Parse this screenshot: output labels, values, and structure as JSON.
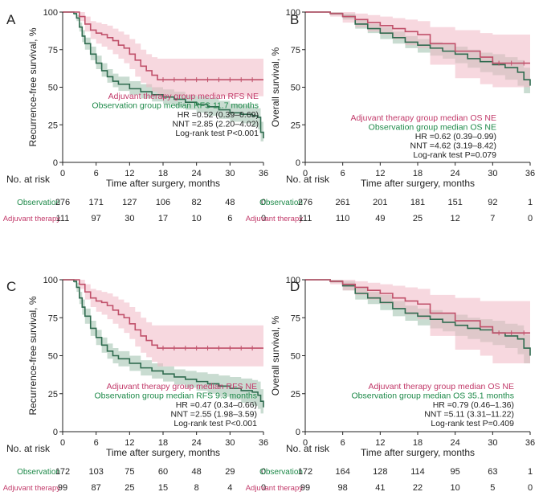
{
  "colors": {
    "observation": "#2f6b4f",
    "adjuvant": "#c0506a",
    "observation_band": "#9dbfab",
    "adjuvant_band": "#f0b8c4",
    "annot_obs": "#1f8a4a",
    "annot_adj": "#c23a6a",
    "text": "#222222"
  },
  "common": {
    "xlabel": "Time after surgery, months",
    "risk_title": "No. at risk",
    "risk_labels": [
      "Observation",
      "Adjuvant therapy"
    ]
  },
  "chart_data": [
    {
      "type": "line",
      "panel_label": "A",
      "title": "",
      "ylabel": "Recurrence-free survival, %",
      "xlabel": "Time after surgery, months",
      "xlim": [
        0,
        36
      ],
      "ylim": [
        0,
        100
      ],
      "xticks": [
        0,
        6,
        12,
        18,
        24,
        30,
        36
      ],
      "yticks": [
        0,
        25,
        50,
        75,
        100
      ],
      "series": [
        {
          "name": "Observation",
          "x": [
            0,
            1,
            2,
            2.5,
            3,
            3.5,
            4,
            5,
            6,
            7,
            8,
            9,
            10,
            12,
            14,
            16,
            18,
            20,
            22,
            24,
            26,
            28,
            30,
            32,
            34,
            35,
            35.5,
            36
          ],
          "y": [
            100,
            100,
            99,
            96,
            90,
            84,
            79,
            72,
            66,
            61,
            57,
            54,
            52,
            49,
            47,
            45,
            43.5,
            42,
            40,
            38.5,
            37,
            35,
            33,
            32,
            31,
            30,
            20,
            16
          ],
          "lower": [
            100,
            100,
            98,
            94,
            87,
            80,
            75,
            68,
            62,
            57,
            53,
            50,
            47.5,
            45,
            42.5,
            40.5,
            39,
            37,
            35,
            33,
            31,
            29,
            27,
            26,
            24,
            22,
            14,
            10
          ],
          "upper": [
            100,
            100,
            100,
            98,
            93,
            88,
            83,
            77,
            71,
            66,
            62,
            59,
            57,
            54,
            52,
            50,
            48.5,
            47,
            45,
            44,
            43,
            41,
            39,
            38,
            37,
            36,
            27,
            22
          ]
        },
        {
          "name": "Adjuvant therapy",
          "x": [
            0,
            2,
            3,
            4,
            5,
            6,
            7,
            8,
            9,
            10,
            11,
            12,
            13,
            14,
            15,
            16,
            17,
            36
          ],
          "y": [
            100,
            100,
            97,
            92,
            88,
            86,
            85,
            83,
            81,
            78,
            76,
            72,
            68,
            64,
            61,
            58,
            55,
            55
          ],
          "lower": [
            100,
            100,
            94,
            87,
            82,
            79,
            77,
            75,
            72,
            69,
            66,
            62,
            57,
            53,
            50,
            47,
            44,
            44
          ],
          "upper": [
            100,
            100,
            100,
            97,
            94,
            93,
            92,
            91,
            89,
            87,
            85,
            82,
            79,
            75,
            72,
            70,
            69,
            69
          ]
        }
      ],
      "annotations": [
        "Adjuvant therapy group median RFS NE",
        "Observation group median RFS 11.7 months",
        "HR =0.52 (0.39–0.69)",
        "NNT =2.85 (2.20–4.02)",
        "Log-rank test P<0.001"
      ],
      "risk": {
        "Observation": [
          276,
          171,
          127,
          106,
          82,
          48,
          0
        ],
        "Adjuvant therapy": [
          111,
          97,
          30,
          17,
          10,
          6,
          0
        ]
      }
    },
    {
      "type": "line",
      "panel_label": "B",
      "title": "",
      "ylabel": "Overall survival, %",
      "xlabel": "Time after surgery, months",
      "xlim": [
        0,
        36
      ],
      "ylim": [
        0,
        100
      ],
      "xticks": [
        0,
        6,
        12,
        18,
        24,
        30,
        36
      ],
      "yticks": [
        0,
        25,
        50,
        75,
        100
      ],
      "series": [
        {
          "name": "Observation",
          "x": [
            0,
            4,
            6,
            8,
            10,
            12,
            14,
            16,
            18,
            20,
            22,
            24,
            26,
            28,
            30,
            32,
            34,
            35,
            36
          ],
          "y": [
            100,
            99,
            97,
            92,
            89,
            86,
            83,
            80,
            78,
            76,
            74,
            72,
            69,
            67,
            65,
            63,
            60,
            55,
            51
          ],
          "lower": [
            100,
            98,
            95,
            89,
            86,
            82,
            79,
            76,
            73,
            71,
            69,
            66,
            63,
            60,
            58,
            55,
            51,
            46,
            42
          ],
          "upper": [
            100,
            100,
            99,
            95,
            92,
            90,
            87,
            84,
            82,
            80,
            79,
            77,
            75,
            73,
            72,
            70,
            68,
            63,
            60
          ]
        },
        {
          "name": "Adjuvant therapy",
          "x": [
            0,
            4,
            6,
            8,
            10,
            12,
            14,
            16,
            18,
            20,
            24,
            28,
            30,
            36
          ],
          "y": [
            100,
            99,
            97,
            95,
            93,
            91,
            89,
            87,
            85,
            79,
            74,
            70,
            66,
            66
          ],
          "lower": [
            100,
            97,
            93,
            90,
            87,
            85,
            82,
            78,
            76,
            65,
            56,
            52,
            50,
            50
          ],
          "upper": [
            100,
            100,
            100,
            99,
            98,
            97,
            96,
            95,
            94,
            90,
            88,
            86,
            85,
            85
          ]
        }
      ],
      "annotations": [
        "Adjuvant therapy group median OS NE",
        "Observation group median OS NE",
        "HR =0.62 (0.39–0.99)",
        "NNT =4.62 (3.19–8.42)",
        "Log-rank test P=0.079"
      ],
      "risk": {
        "Observation": [
          276,
          261,
          201,
          181,
          151,
          92,
          1
        ],
        "Adjuvant therapy": [
          111,
          110,
          49,
          25,
          12,
          7,
          0
        ]
      }
    },
    {
      "type": "line",
      "panel_label": "C",
      "title": "",
      "ylabel": "Recurrence-free survival, %",
      "xlabel": "Time after surgery, months",
      "xlim": [
        0,
        36
      ],
      "ylim": [
        0,
        100
      ],
      "xticks": [
        0,
        6,
        12,
        18,
        24,
        30,
        36
      ],
      "yticks": [
        0,
        25,
        50,
        75,
        100
      ],
      "series": [
        {
          "name": "Observation",
          "x": [
            0,
            1,
            2,
            2.5,
            3,
            3.5,
            4,
            5,
            6,
            7,
            8,
            9,
            10,
            12,
            14,
            16,
            18,
            20,
            22,
            24,
            26,
            28,
            30,
            32,
            34,
            35,
            35.5,
            36
          ],
          "y": [
            100,
            100,
            99,
            95,
            88,
            82,
            76,
            68,
            62,
            57,
            53,
            50,
            48,
            45,
            42,
            40,
            38,
            36,
            34.5,
            33,
            31.5,
            30,
            28.5,
            27,
            26,
            24,
            20,
            16
          ],
          "lower": [
            100,
            100,
            98,
            92,
            84,
            77,
            71,
            63,
            57,
            52,
            48,
            45,
            43,
            40,
            37,
            35,
            33,
            31,
            29,
            27,
            25,
            23,
            21,
            19,
            17,
            15,
            12,
            9
          ],
          "upper": [
            100,
            100,
            100,
            98,
            92,
            87,
            81,
            73,
            67,
            62,
            58,
            55,
            53,
            50,
            47,
            45,
            43,
            41,
            40,
            39,
            38,
            37,
            36,
            35,
            34,
            33,
            28,
            24
          ]
        },
        {
          "name": "Adjuvant therapy",
          "x": [
            0,
            2,
            3,
            4,
            5,
            6,
            7,
            8,
            9,
            10,
            11,
            12,
            13,
            14,
            15,
            16,
            17,
            36
          ],
          "y": [
            100,
            100,
            97,
            92,
            88,
            86,
            85,
            83,
            80,
            77,
            75,
            71,
            67,
            63,
            60,
            57,
            55,
            55
          ],
          "lower": [
            100,
            100,
            94,
            87,
            82,
            79,
            77,
            74,
            71,
            68,
            65,
            61,
            56,
            52,
            49,
            46,
            43,
            43
          ],
          "upper": [
            100,
            100,
            100,
            97,
            94,
            93,
            92,
            91,
            89,
            87,
            85,
            82,
            79,
            75,
            72,
            70,
            70,
            70
          ]
        }
      ],
      "annotations": [
        "Adjuvant therapy group median RFS NE",
        "Observation group median RFS 9.3 months",
        "HR =0.47 (0.34–0.66)",
        "NNT =2.55 (1.98–3.59)",
        "Log-rank test P<0.001"
      ],
      "risk": {
        "Observation": [
          172,
          103,
          75,
          60,
          48,
          29,
          0
        ],
        "Adjuvant therapy": [
          99,
          87,
          25,
          15,
          8,
          4,
          0
        ]
      }
    },
    {
      "type": "line",
      "panel_label": "D",
      "title": "",
      "ylabel": "Overall survival, %",
      "xlabel": "Time after surgery, months",
      "xlim": [
        0,
        36
      ],
      "ylim": [
        0,
        100
      ],
      "xticks": [
        0,
        6,
        12,
        18,
        24,
        30,
        36
      ],
      "yticks": [
        0,
        25,
        50,
        75,
        100
      ],
      "series": [
        {
          "name": "Observation",
          "x": [
            0,
            4,
            6,
            8,
            10,
            12,
            14,
            16,
            18,
            20,
            22,
            24,
            26,
            28,
            30,
            32,
            34,
            35,
            36
          ],
          "y": [
            100,
            99,
            96,
            91,
            88,
            85,
            81,
            78,
            76,
            74,
            72,
            70,
            68,
            67,
            65,
            63,
            61,
            55,
            50
          ],
          "lower": [
            100,
            98,
            93,
            87,
            84,
            80,
            76,
            73,
            70,
            68,
            66,
            63,
            61,
            59,
            57,
            55,
            51,
            45,
            40
          ],
          "upper": [
            100,
            100,
            99,
            95,
            92,
            90,
            86,
            83,
            81,
            80,
            78,
            77,
            75,
            74,
            73,
            71,
            70,
            64,
            60
          ]
        },
        {
          "name": "Adjuvant therapy",
          "x": [
            0,
            4,
            6,
            8,
            10,
            12,
            14,
            16,
            18,
            20,
            24,
            28,
            30,
            36
          ],
          "y": [
            100,
            99,
            97,
            95,
            93,
            91,
            88,
            86,
            84,
            78,
            73,
            69,
            65,
            65
          ],
          "lower": [
            100,
            97,
            93,
            90,
            87,
            84,
            81,
            77,
            74,
            63,
            54,
            50,
            45,
            45
          ],
          "upper": [
            100,
            100,
            100,
            99,
            98,
            97,
            96,
            95,
            94,
            90,
            88,
            86,
            86,
            86
          ]
        }
      ],
      "annotations": [
        "Adjuvant therapy group median OS NE",
        "Observation group median OS 35.1 months",
        "HR =0.79 (0.46–1.36)",
        "NNT =5.11 (3.31–11.22)",
        "Log-rank test P=0.409"
      ],
      "risk": {
        "Observation": [
          172,
          164,
          128,
          114,
          95,
          63,
          1
        ],
        "Adjuvant therapy": [
          99,
          98,
          41,
          22,
          10,
          5,
          0
        ]
      }
    }
  ]
}
